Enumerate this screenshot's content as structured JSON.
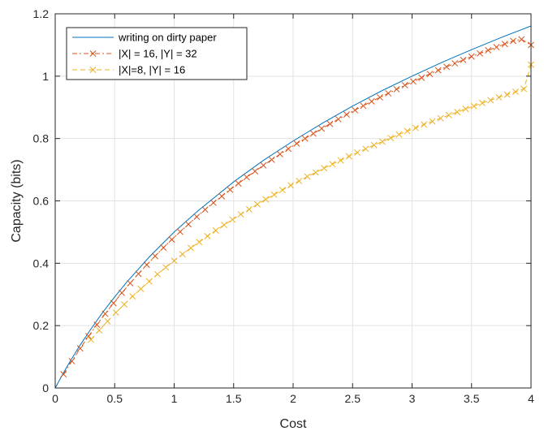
{
  "chart_data": {
    "type": "line",
    "title": "",
    "xlabel": "Cost",
    "ylabel": "Capacity (bits)",
    "xlim": [
      0,
      4
    ],
    "ylim": [
      0,
      1.2
    ],
    "xticks": [
      0,
      0.5,
      1,
      1.5,
      2,
      2.5,
      3,
      3.5,
      4
    ],
    "xtick_labels": [
      "0",
      "0.5",
      "1",
      "1.5",
      "2",
      "2.5",
      "3",
      "3.5",
      "4"
    ],
    "yticks": [
      0,
      0.2,
      0.4,
      0.6,
      0.8,
      1,
      1.2
    ],
    "ytick_labels": [
      "0",
      "0.2",
      "0.4",
      "0.6",
      "0.8",
      "1",
      "1.2"
    ],
    "grid": true,
    "legend_position": "top-left",
    "series": [
      {
        "name": "writing on dirty paper",
        "color": "#0072BD",
        "line_style": "solid",
        "marker": "none",
        "x": [
          0,
          0.05,
          0.1,
          0.2,
          0.3,
          0.4,
          0.5,
          0.6,
          0.8,
          1.0,
          1.2,
          1.5,
          1.75,
          2.0,
          2.25,
          2.5,
          2.75,
          3.0,
          3.25,
          3.5,
          3.75,
          4.0
        ],
        "y": [
          0,
          0.035,
          0.069,
          0.132,
          0.189,
          0.243,
          0.292,
          0.339,
          0.424,
          0.5,
          0.568,
          0.661,
          0.73,
          0.792,
          0.85,
          0.904,
          0.954,
          1.0,
          1.044,
          1.085,
          1.124,
          1.161
        ]
      },
      {
        "name": "|X| = 16, |Y| = 32",
        "color": "#D95319",
        "line_style": "dash-dot",
        "marker": "x",
        "x": [
          0.07,
          0.14,
          0.21,
          0.28,
          0.35,
          0.42,
          0.49,
          0.56,
          0.63,
          0.7,
          0.77,
          0.84,
          0.91,
          0.98,
          1.05,
          1.12,
          1.19,
          1.26,
          1.33,
          1.4,
          1.47,
          1.54,
          1.61,
          1.68,
          1.75,
          1.82,
          1.89,
          1.96,
          2.03,
          2.1,
          2.17,
          2.24,
          2.31,
          2.38,
          2.45,
          2.52,
          2.59,
          2.66,
          2.73,
          2.8,
          2.87,
          2.94,
          3.01,
          3.08,
          3.15,
          3.22,
          3.29,
          3.36,
          3.43,
          3.5,
          3.57,
          3.64,
          3.71,
          3.78,
          3.85,
          3.92,
          4.0
        ],
        "y": [
          0.044,
          0.086,
          0.127,
          0.166,
          0.203,
          0.238,
          0.272,
          0.305,
          0.336,
          0.366,
          0.395,
          0.423,
          0.45,
          0.476,
          0.501,
          0.525,
          0.549,
          0.572,
          0.594,
          0.615,
          0.636,
          0.656,
          0.676,
          0.695,
          0.714,
          0.732,
          0.75,
          0.767,
          0.784,
          0.8,
          0.816,
          0.832,
          0.847,
          0.862,
          0.877,
          0.891,
          0.905,
          0.919,
          0.932,
          0.945,
          0.958,
          0.971,
          0.983,
          0.995,
          1.007,
          1.019,
          1.03,
          1.041,
          1.052,
          1.063,
          1.073,
          1.083,
          1.093,
          1.103,
          1.113,
          1.118,
          1.1
        ]
      },
      {
        "name": "|X|=8, |Y| = 16",
        "color": "#EDB120",
        "line_style": "dashed",
        "marker": "x",
        "x": [
          0.3,
          0.37,
          0.44,
          0.51,
          0.58,
          0.65,
          0.72,
          0.79,
          0.86,
          0.93,
          1.0,
          1.07,
          1.14,
          1.21,
          1.28,
          1.35,
          1.42,
          1.49,
          1.56,
          1.63,
          1.7,
          1.77,
          1.84,
          1.91,
          1.98,
          2.05,
          2.12,
          2.19,
          2.26,
          2.33,
          2.4,
          2.47,
          2.54,
          2.61,
          2.68,
          2.75,
          2.82,
          2.89,
          2.96,
          3.03,
          3.1,
          3.17,
          3.24,
          3.31,
          3.38,
          3.45,
          3.52,
          3.59,
          3.66,
          3.73,
          3.8,
          3.87,
          3.94,
          4.0
        ],
        "y": [
          0.155,
          0.185,
          0.214,
          0.242,
          0.268,
          0.294,
          0.318,
          0.342,
          0.365,
          0.387,
          0.408,
          0.429,
          0.449,
          0.468,
          0.487,
          0.505,
          0.523,
          0.54,
          0.557,
          0.573,
          0.589,
          0.605,
          0.62,
          0.635,
          0.65,
          0.664,
          0.678,
          0.691,
          0.705,
          0.718,
          0.73,
          0.743,
          0.755,
          0.767,
          0.779,
          0.79,
          0.802,
          0.813,
          0.824,
          0.834,
          0.845,
          0.855,
          0.865,
          0.875,
          0.885,
          0.895,
          0.904,
          0.914,
          0.923,
          0.932,
          0.941,
          0.95,
          0.959,
          1.037
        ]
      }
    ]
  }
}
